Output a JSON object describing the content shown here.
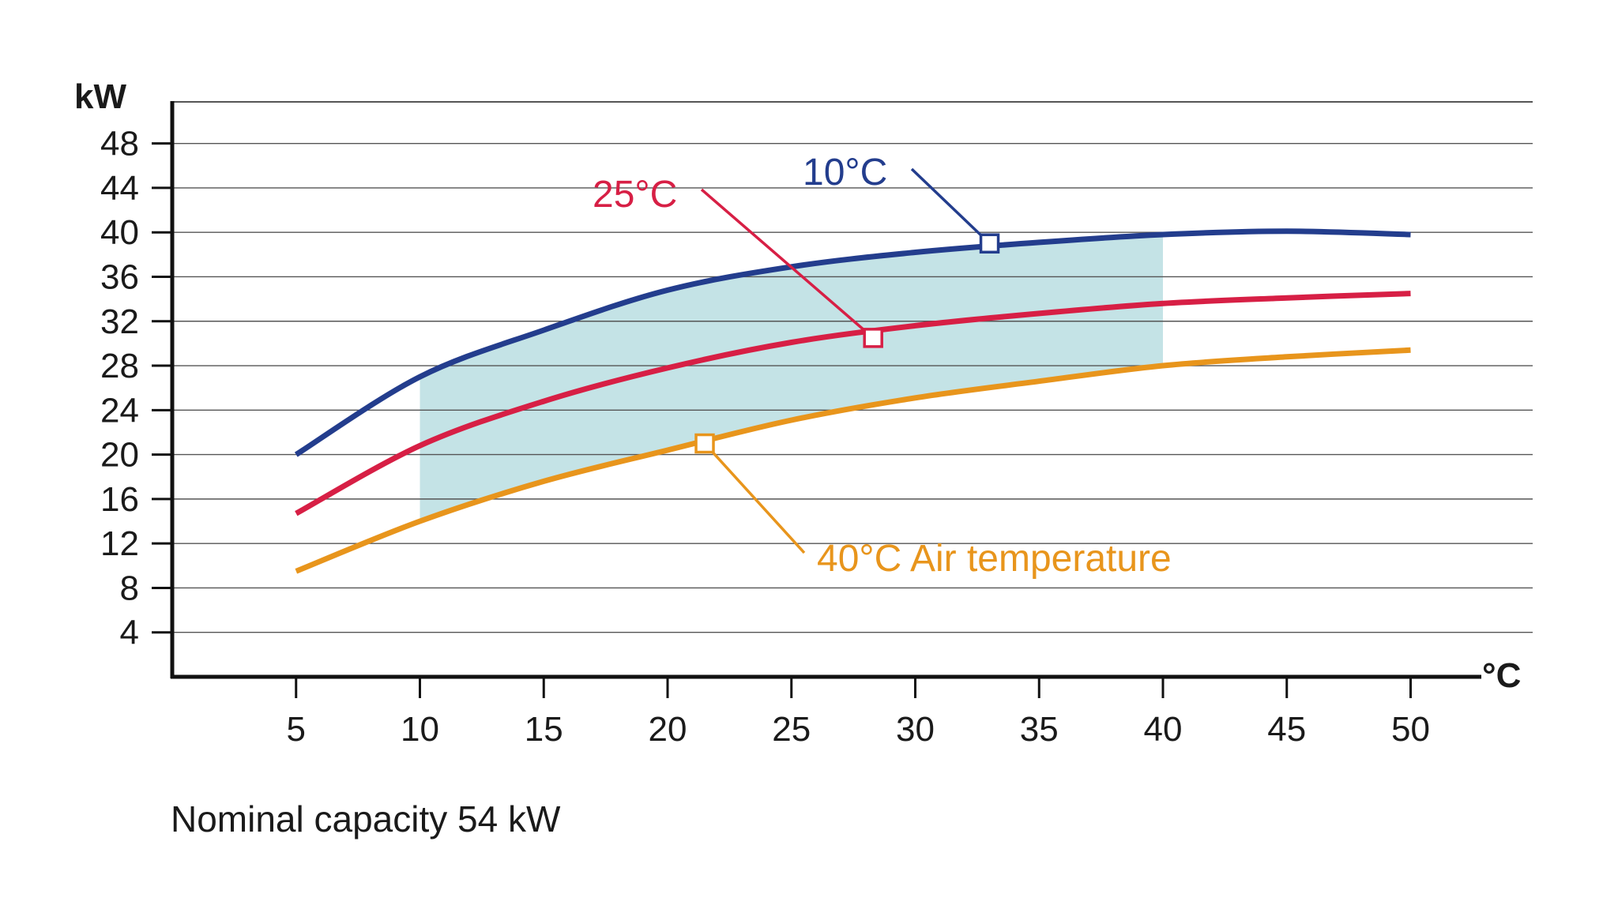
{
  "chart_data": {
    "type": "line",
    "title": "",
    "xlabel": "",
    "ylabel": "",
    "x_unit": "°C",
    "y_unit": "kW",
    "xlim": [
      0,
      55
    ],
    "ylim": [
      0,
      52
    ],
    "x_ticks": [
      5,
      10,
      15,
      20,
      25,
      30,
      35,
      40,
      45,
      50
    ],
    "y_ticks": [
      4,
      8,
      12,
      16,
      20,
      24,
      28,
      32,
      36,
      40,
      44,
      48
    ],
    "grid": true,
    "shaded_region": {
      "x_range": [
        10,
        40
      ],
      "color": "#c4e3e6"
    },
    "series": [
      {
        "name": "10°C",
        "color": "#233d8d",
        "x": [
          5,
          10,
          15,
          20,
          25,
          30,
          35,
          40,
          45,
          50
        ],
        "values": [
          20,
          27,
          31.2,
          34.8,
          36.9,
          38.2,
          39.1,
          39.8,
          40.1,
          39.8
        ],
        "marker_x": 33,
        "marker_y": 39
      },
      {
        "name": "25°C",
        "color": "#d71f45",
        "x": [
          5,
          10,
          15,
          20,
          25,
          30,
          35,
          40,
          45,
          50
        ],
        "values": [
          14.7,
          20.8,
          24.8,
          27.8,
          30.1,
          31.6,
          32.7,
          33.6,
          34.1,
          34.5
        ],
        "marker_x": 28.3,
        "marker_y": 30.5
      },
      {
        "name": "40°C Air temperature",
        "color": "#e8951c",
        "x": [
          5,
          10,
          15,
          20,
          25,
          30,
          35,
          40,
          45,
          50
        ],
        "values": [
          9.5,
          14,
          17.6,
          20.4,
          23.1,
          25.1,
          26.6,
          28,
          28.8,
          29.4
        ],
        "marker_x": 21.5,
        "marker_y": 21
      }
    ]
  },
  "caption": "Nominal capacity 54 kW"
}
